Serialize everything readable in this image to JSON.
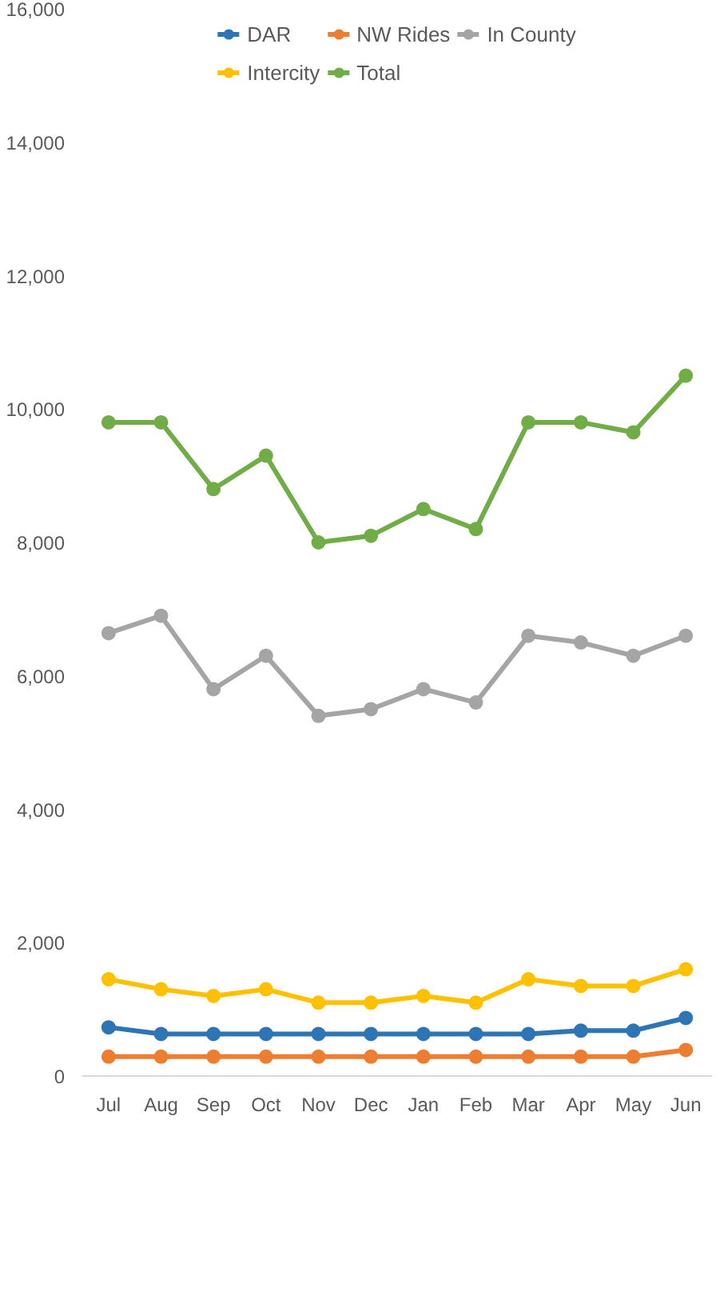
{
  "chart_data": {
    "type": "line",
    "categories": [
      "Jul",
      "Aug",
      "Sep",
      "Oct",
      "Nov",
      "Dec",
      "Jan",
      "Feb",
      "Mar",
      "Apr",
      "May",
      "Jun"
    ],
    "series": [
      {
        "name": "DAR",
        "color": "#2e75b6",
        "values": [
          730,
          630,
          630,
          630,
          630,
          630,
          630,
          630,
          630,
          680,
          680,
          870
        ]
      },
      {
        "name": "NW Rides",
        "color": "#ed7d31",
        "values": [
          290,
          290,
          290,
          290,
          290,
          290,
          290,
          290,
          290,
          290,
          290,
          390
        ]
      },
      {
        "name": "In County",
        "color": "#a5a5a5",
        "values": [
          6640,
          6900,
          5800,
          6300,
          5400,
          5500,
          5800,
          5600,
          6600,
          6500,
          6300,
          6600
        ]
      },
      {
        "name": "Intercity",
        "color": "#ffc000",
        "values": [
          1450,
          1300,
          1200,
          1300,
          1100,
          1100,
          1200,
          1100,
          1450,
          1350,
          1350,
          1600
        ]
      },
      {
        "name": "Total",
        "color": "#70ad47",
        "values": [
          9800,
          9800,
          8800,
          9300,
          8000,
          8100,
          8500,
          8200,
          9800,
          9800,
          9650,
          10500
        ]
      }
    ],
    "ylim": [
      0,
      16000
    ],
    "yticks": [
      {
        "value": 0,
        "label": "0"
      },
      {
        "value": 2000,
        "label": "2,000"
      },
      {
        "value": 4000,
        "label": "4,000"
      },
      {
        "value": 6000,
        "label": "6,000"
      },
      {
        "value": 8000,
        "label": "8,000"
      },
      {
        "value": 10000,
        "label": "10,000"
      },
      {
        "value": 12000,
        "label": "12,000"
      },
      {
        "value": 14000,
        "label": "14,000"
      },
      {
        "value": 16000,
        "label": "16,000"
      }
    ],
    "grid": false,
    "legend": "top",
    "marker": "circle",
    "line_style": "solid"
  }
}
